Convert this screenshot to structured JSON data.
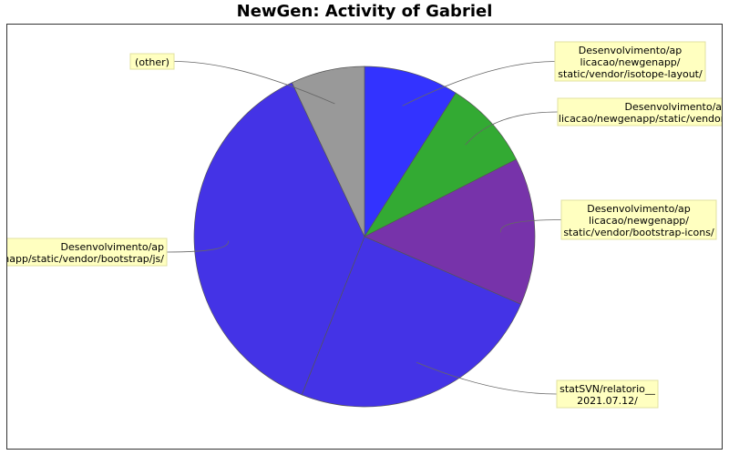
{
  "chart_data": {
    "type": "pie",
    "title": "NewGen: Activity of Gabriel",
    "slices": [
      {
        "label": [
          "Desenvolvimento/ap",
          "licacao/newgenapp/",
          "static/vendor/isotope-layout/"
        ],
        "value": 9.0,
        "color": "#3333ff"
      },
      {
        "label": [
          "Desenvolvimento/ap",
          "licacao/newgenapp/static/vendor/"
        ],
        "value": 8.5,
        "color": "#33aa33"
      },
      {
        "label": [
          "Desenvolvimento/ap",
          "licacao/newgenapp/",
          "static/vendor/bootstrap-icons/"
        ],
        "value": 14.0,
        "color": "#7733aa"
      },
      {
        "label": [
          "statSVN/relatorio__",
          "2021.07.12/"
        ],
        "value": 24.5,
        "color": "#4433e6"
      },
      {
        "label": [
          "Desenvolvimento/ap",
          "licacao/newgenapp/static/vendor/bootstrap/js/"
        ],
        "value": 37.0,
        "color": "#4433e6"
      },
      {
        "label": [
          "(other)"
        ],
        "value": 7.0,
        "color": "#999999"
      }
    ]
  }
}
